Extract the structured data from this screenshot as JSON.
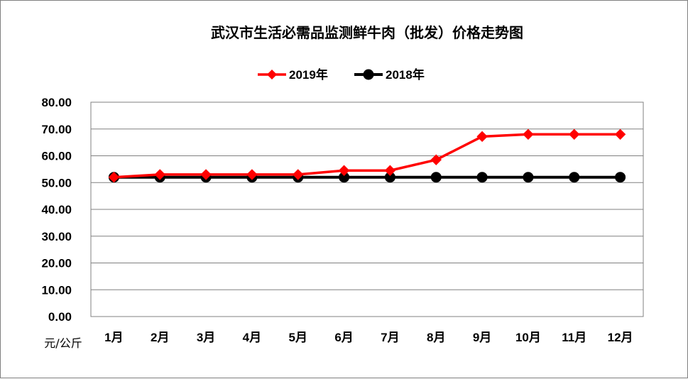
{
  "chart_data": {
    "type": "line",
    "title": "武汉市生活必需品监测鲜牛肉（批发）价格走势图",
    "categories": [
      "1月",
      "2月",
      "3月",
      "4月",
      "5月",
      "6月",
      "7月",
      "8月",
      "9月",
      "10月",
      "11月",
      "12月"
    ],
    "y_unit_label": "元/公斤",
    "ylim": [
      0,
      80
    ],
    "y_ticks": [
      "0.00",
      "10.00",
      "20.00",
      "30.00",
      "40.00",
      "50.00",
      "60.00",
      "70.00",
      "80.00"
    ],
    "grid": true,
    "legend_position": "top-center",
    "series": [
      {
        "name": "2019年",
        "color": "#ff0000",
        "marker": "diamond",
        "values": [
          52.0,
          53.0,
          53.0,
          53.0,
          53.0,
          54.5,
          54.5,
          58.5,
          67.2,
          68.0,
          68.0,
          68.0
        ]
      },
      {
        "name": "2018年",
        "color": "#000000",
        "marker": "circle",
        "values": [
          52.0,
          52.0,
          52.0,
          52.0,
          52.0,
          52.0,
          52.0,
          52.0,
          52.0,
          52.0,
          52.0,
          52.0
        ]
      }
    ]
  }
}
